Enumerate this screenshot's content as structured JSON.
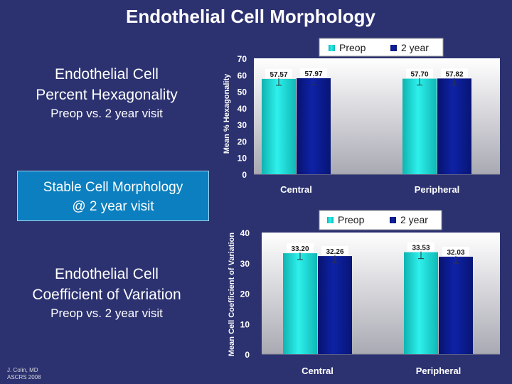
{
  "slide": {
    "title": "Endothelial Cell Morphology",
    "hex_heading_line1": "Endothelial Cell",
    "hex_heading_line2": "Percent Hexagonality",
    "hex_subheading": "Preop vs. 2 year visit",
    "callout_line1": "Stable Cell Morphology",
    "callout_line2": "@ 2 year visit",
    "cv_heading_line1": "Endothelial Cell",
    "cv_heading_line2": "Coefficient of Variation",
    "cv_subheading": "Preop vs. 2 year visit",
    "credit_line1": "J. Colin, MD",
    "credit_line2": "ASCRS 2008"
  },
  "colors": {
    "background": "#2c3270",
    "preop": "#19d3cf",
    "two_year": "#0a1a8c",
    "plot_top": "#ffffff",
    "plot_bottom": "#a9a9b3"
  },
  "chart_data": [
    {
      "type": "bar",
      "title": "",
      "ylabel": "Mean % Hexagonality",
      "xlabel": "",
      "categories": [
        "Central",
        "Peripheral"
      ],
      "series": [
        {
          "name": "Preop",
          "values": [
            57.57,
            57.7
          ]
        },
        {
          "name": "2 year",
          "values": [
            57.97,
            57.82
          ]
        }
      ],
      "data_labels": [
        [
          "57.57",
          "57.97"
        ],
        [
          "57.70",
          "57.82"
        ]
      ],
      "error_bars": true,
      "ylim": [
        0,
        70
      ],
      "yticks": [
        "0",
        "10",
        "20",
        "30",
        "40",
        "50",
        "60",
        "70"
      ],
      "legend_position": "top-right"
    },
    {
      "type": "bar",
      "title": "",
      "ylabel": "Mean Cell Coefficient of Variation",
      "xlabel": "",
      "categories": [
        "Central",
        "Peripheral"
      ],
      "series": [
        {
          "name": "Preop",
          "values": [
            33.2,
            33.53
          ]
        },
        {
          "name": "2 year",
          "values": [
            32.26,
            32.03
          ]
        }
      ],
      "data_labels": [
        [
          "33.20",
          "32.26"
        ],
        [
          "33.53",
          "32.03"
        ]
      ],
      "error_bars": true,
      "ylim": [
        0,
        40
      ],
      "yticks": [
        "0",
        "10",
        "20",
        "30",
        "40"
      ],
      "legend_position": "top-right"
    }
  ]
}
